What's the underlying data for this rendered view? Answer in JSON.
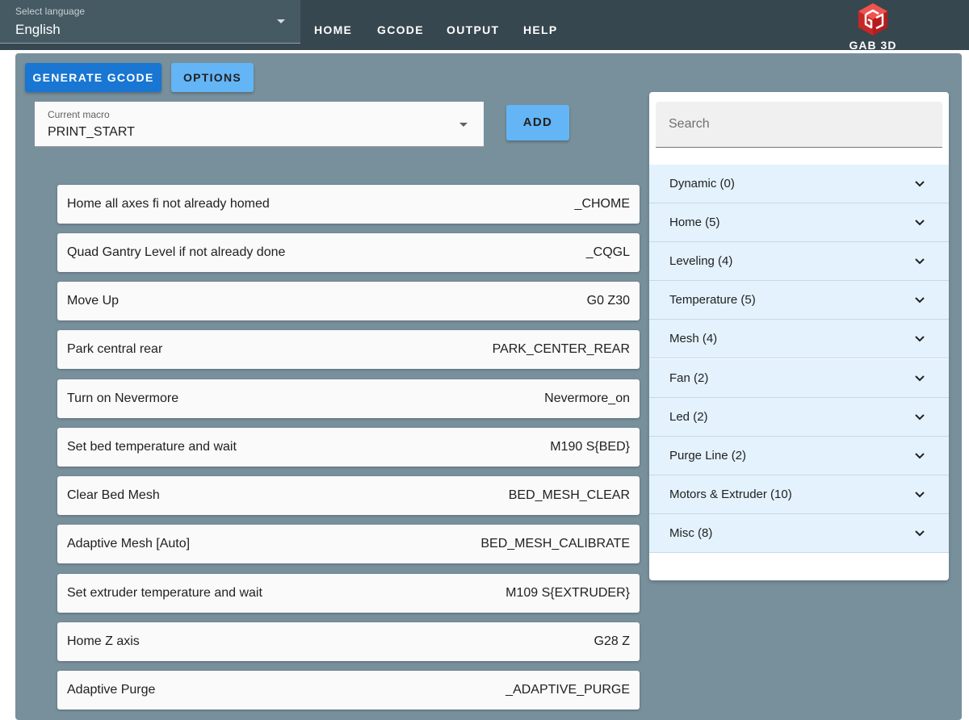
{
  "header": {
    "language": {
      "label": "Select language",
      "value": "English"
    },
    "nav": [
      "HOME",
      "GCODE",
      "OUTPUT",
      "HELP"
    ],
    "logo_text": "GAB 3D",
    "colors": {
      "appbar": "#37474f",
      "logo_red": "#d32f2f"
    }
  },
  "toolbar": {
    "generate_label": "GENERATE GCODE",
    "options_label": "OPTIONS",
    "add_label": "ADD"
  },
  "macro": {
    "label": "Current macro",
    "value": "PRINT_START"
  },
  "steps": [
    {
      "label": "Home all axes fi not already homed",
      "code": "_CHOME"
    },
    {
      "label": "Quad Gantry Level if not already done",
      "code": "_CQGL"
    },
    {
      "label": "Move Up",
      "code": "G0 Z30"
    },
    {
      "label": "Park central rear",
      "code": "PARK_CENTER_REAR"
    },
    {
      "label": "Turn on Nevermore",
      "code": "Nevermore_on"
    },
    {
      "label": "Set bed temperature and wait",
      "code": "M190 S{BED}"
    },
    {
      "label": "Clear Bed Mesh",
      "code": "BED_MESH_CLEAR"
    },
    {
      "label": "Adaptive Mesh [Auto]",
      "code": "BED_MESH_CALIBRATE"
    },
    {
      "label": "Set extruder temperature and wait",
      "code": "M109 S{EXTRUDER}"
    },
    {
      "label": "Home Z axis",
      "code": "G28 Z"
    },
    {
      "label": "Adaptive Purge",
      "code": "_ADAPTIVE_PURGE"
    }
  ],
  "search": {
    "placeholder": "Search"
  },
  "categories": [
    {
      "label": "Dynamic (0)"
    },
    {
      "label": "Home (5)"
    },
    {
      "label": "Leveling (4)"
    },
    {
      "label": "Temperature (5)"
    },
    {
      "label": "Mesh (4)"
    },
    {
      "label": "Fan (2)"
    },
    {
      "label": "Led (2)"
    },
    {
      "label": "Purge Line (2)"
    },
    {
      "label": "Motors & Extruder (10)"
    },
    {
      "label": "Misc (8)"
    }
  ],
  "icons": {
    "language_caret": "caret-down-icon",
    "macro_caret": "caret-down-icon",
    "category_expand": "chevron-down-icon",
    "logo": "cube-logo-icon"
  }
}
